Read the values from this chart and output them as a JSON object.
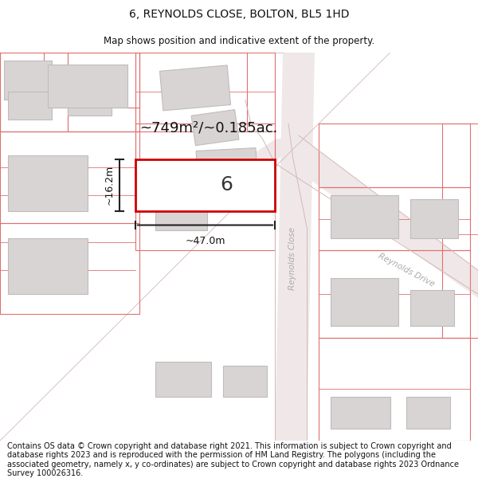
{
  "title": "6, REYNOLDS CLOSE, BOLTON, BL5 1HD",
  "subtitle": "Map shows position and indicative extent of the property.",
  "footer": "Contains OS data © Crown copyright and database right 2021. This information is subject to Crown copyright and database rights 2023 and is reproduced with the permission of HM Land Registry. The polygons (including the associated geometry, namely x, y co-ordinates) are subject to Crown copyright and database rights 2023 Ordnance Survey 100026316.",
  "bg_color": "#ffffff",
  "road_fill": "#f0e8e8",
  "road_edge": "#d4b8b8",
  "boundary_color": "#e07070",
  "building_color": "#d8d4d4",
  "building_edge": "#c0bcbc",
  "highlight_color": "#cc0000",
  "dim_color": "#222222",
  "street_label_color": "#aaaaaa",
  "area_text": "~749m²/~0.185ac.",
  "label_6": "6",
  "dim_width": "~47.0m",
  "dim_height": "~16.2m",
  "street_close": "Reynolds Close",
  "street_drive": "Reynolds Drive",
  "title_fontsize": 10,
  "subtitle_fontsize": 8.5,
  "footer_fontsize": 7.0
}
